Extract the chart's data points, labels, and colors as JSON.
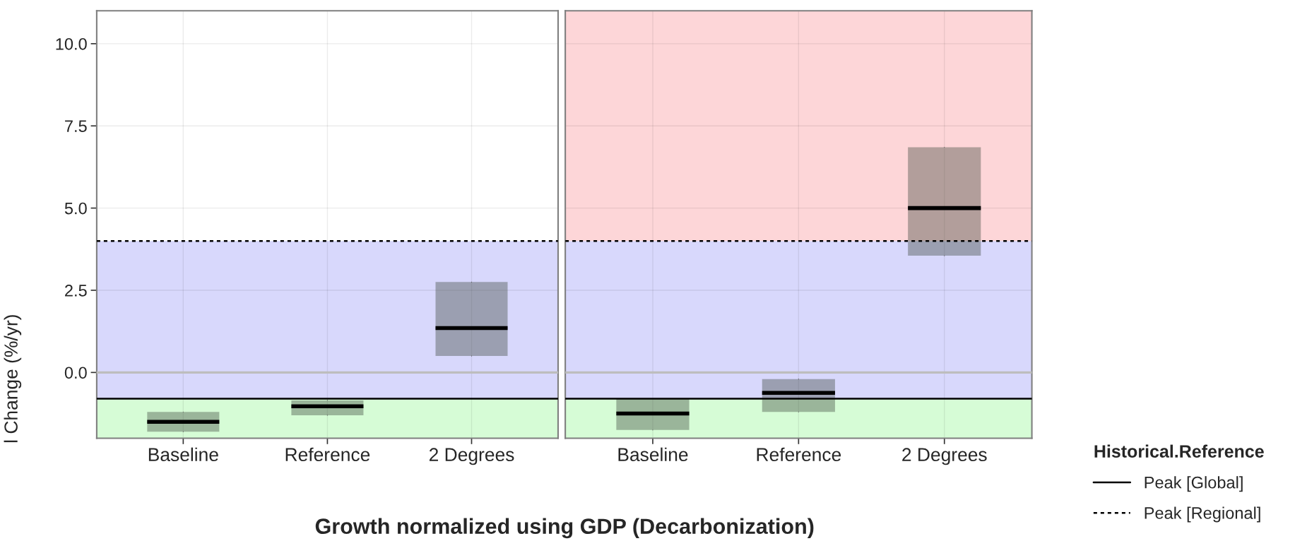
{
  "chart_data": [
    {
      "type": "box",
      "categories": [
        "Baseline",
        "Reference",
        "2 Degrees"
      ],
      "boxes": [
        {
          "low": -1.8,
          "q1": -1.8,
          "median": -1.5,
          "q3": -1.2,
          "high": -1.2
        },
        {
          "low": -1.3,
          "q1": -1.3,
          "median": -1.03,
          "q3": -0.85,
          "high": -0.85
        },
        {
          "low": 0.5,
          "q1": 0.5,
          "median": 1.35,
          "q3": 2.75,
          "high": 2.75
        }
      ],
      "ylim": [
        -2,
        11
      ],
      "yticks": [
        {
          "value": 0,
          "label": "0.0"
        },
        {
          "value": 2.5,
          "label": "2.5"
        },
        {
          "value": 5,
          "label": "5.0"
        },
        {
          "value": 7.5,
          "label": "7.5"
        },
        {
          "value": 10,
          "label": "10.0"
        }
      ],
      "ylabel": "l Change (%/yr)",
      "xlabel": "Growth normalized using GDP (Decarbonization)",
      "grid": true,
      "bands": [
        {
          "axis": "y",
          "from": -2,
          "to": -0.8,
          "color": "#d6fcd6"
        },
        {
          "axis": "y",
          "from": -0.8,
          "to": 4,
          "color": "#d8d8fc"
        }
      ],
      "ref_lines": [
        {
          "axis": "y",
          "value": 0,
          "color": "#bdbdbd"
        },
        {
          "axis": "y",
          "value": -0.8,
          "line_style": "solid",
          "color": "#000000"
        },
        {
          "axis": "y",
          "value": 4,
          "line_style": "dotted",
          "color": "#000000"
        }
      ]
    },
    {
      "type": "box",
      "categories": [
        "Baseline",
        "Reference",
        "2 Degrees"
      ],
      "boxes": [
        {
          "low": -1.75,
          "q1": -1.75,
          "median": -1.25,
          "q3": -0.8,
          "high": -0.8
        },
        {
          "low": -1.2,
          "q1": -1.2,
          "median": -0.62,
          "q3": -0.2,
          "high": -0.2
        },
        {
          "low": 3.55,
          "q1": 3.55,
          "median": 5.0,
          "q3": 6.85,
          "high": 6.85
        }
      ],
      "ylim": [
        -2,
        11
      ],
      "yticks": [
        0,
        2.5,
        5,
        7.5,
        10
      ],
      "tick_labels": "x",
      "grid": true,
      "legend": "right",
      "legend_title": "Historical.Reference",
      "bands": [
        {
          "axis": "y",
          "from": -2,
          "to": -0.8,
          "color": "#d6fcd6"
        },
        {
          "axis": "y",
          "from": -0.8,
          "to": 4,
          "color": "#d8d8fc"
        },
        {
          "axis": "y",
          "from": 4,
          "to": 11,
          "color": "#fdd6d8"
        }
      ],
      "ref_lines": [
        {
          "axis": "y",
          "value": 0,
          "color": "#bdbdbd"
        },
        {
          "axis": "y",
          "value": -0.8,
          "label": "Peak [Global]",
          "line_style": "solid",
          "color": "#000000"
        },
        {
          "axis": "y",
          "value": 4,
          "label": "Peak [Regional]",
          "line_style": "dotted",
          "color": "#000000"
        }
      ]
    }
  ]
}
